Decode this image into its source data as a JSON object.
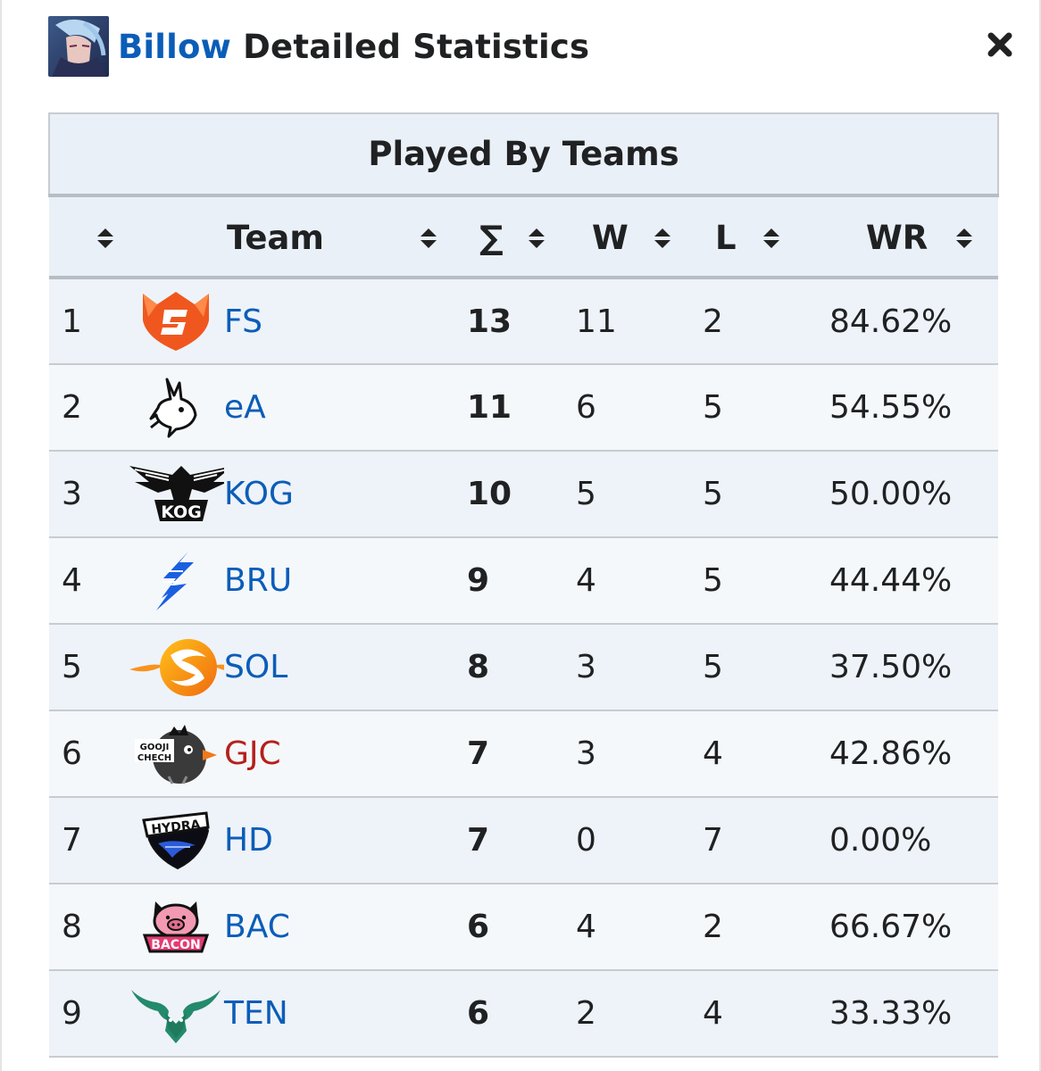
{
  "header": {
    "hero_link": "Billow",
    "title_rest": " Detailed Statistics",
    "avatar_icon": "hero-avatar-icon",
    "close_icon": "close-icon"
  },
  "table": {
    "caption": "Played By Teams",
    "columns": {
      "rank": "",
      "team": "Team",
      "total": "∑",
      "wins": "W",
      "losses": "L",
      "winrate": "WR"
    },
    "rows": [
      {
        "rank": "1",
        "logo": "fs-logo-icon",
        "name": "FS",
        "total": "13",
        "wins": "11",
        "losses": "2",
        "winrate": "84.62%",
        "link_color": "#0b5db8"
      },
      {
        "rank": "2",
        "logo": "ea-logo-icon",
        "name": "eA",
        "total": "11",
        "wins": "6",
        "losses": "5",
        "winrate": "54.55%",
        "link_color": "#0b5db8"
      },
      {
        "rank": "3",
        "logo": "kog-logo-icon",
        "name": "KOG",
        "total": "10",
        "wins": "5",
        "losses": "5",
        "winrate": "50.00%",
        "link_color": "#0b5db8"
      },
      {
        "rank": "4",
        "logo": "bru-logo-icon",
        "name": "BRU",
        "total": "9",
        "wins": "4",
        "losses": "5",
        "winrate": "44.44%",
        "link_color": "#0b5db8"
      },
      {
        "rank": "5",
        "logo": "sol-logo-icon",
        "name": "SOL",
        "total": "8",
        "wins": "3",
        "losses": "5",
        "winrate": "37.50%",
        "link_color": "#0b5db8"
      },
      {
        "rank": "6",
        "logo": "gjc-logo-icon",
        "name": "GJC",
        "total": "7",
        "wins": "3",
        "losses": "4",
        "winrate": "42.86%",
        "link_color": "#b5201a"
      },
      {
        "rank": "7",
        "logo": "hd-logo-icon",
        "name": "HD",
        "total": "7",
        "wins": "0",
        "losses": "7",
        "winrate": "0.00%",
        "link_color": "#0b5db8"
      },
      {
        "rank": "8",
        "logo": "bac-logo-icon",
        "name": "BAC",
        "total": "6",
        "wins": "4",
        "losses": "2",
        "winrate": "66.67%",
        "link_color": "#0b5db8"
      },
      {
        "rank": "9",
        "logo": "ten-logo-icon",
        "name": "TEN",
        "total": "6",
        "wins": "2",
        "losses": "4",
        "winrate": "33.33%",
        "link_color": "#0b5db8"
      }
    ]
  }
}
